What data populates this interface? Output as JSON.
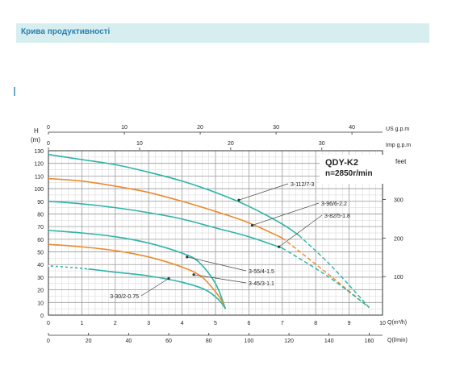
{
  "header": {
    "title": "Крива продуктивності"
  },
  "chart_data": {
    "type": "line",
    "title": "QDY-K2",
    "subtitle": "n=2850r/min",
    "y_axis": {
      "label": "H",
      "unit": "(m)",
      "ylim": [
        0,
        130
      ],
      "ticks": [
        0,
        10,
        20,
        30,
        40,
        50,
        60,
        70,
        80,
        90,
        100,
        110,
        120,
        130
      ]
    },
    "y_axis_right": {
      "label": "feet",
      "ticks": [
        100,
        200,
        300
      ]
    },
    "x_axis_primary": {
      "label": "Q(m³/h)",
      "xlim": [
        0,
        10
      ],
      "ticks": [
        0,
        1,
        2,
        3,
        4,
        5,
        6,
        7,
        8,
        9,
        10
      ]
    },
    "x_axis_lpm": {
      "label": "Q(l/min)",
      "ticks": [
        0,
        20,
        40,
        60,
        80,
        100,
        120,
        140,
        160
      ]
    },
    "x_axis_us_gpm": {
      "label": "US g.p.m",
      "ticks": [
        0,
        10,
        20,
        30,
        40
      ]
    },
    "x_axis_imp_gpm": {
      "label": "Imp g.p.m",
      "ticks": [
        0,
        10,
        20,
        30
      ]
    },
    "grid": true,
    "series": [
      {
        "name": "3-112/7-3",
        "color": "#2bb5a8",
        "x": [
          0,
          1,
          2,
          3,
          4,
          5,
          6,
          7,
          7.5
        ],
        "y": [
          127,
          123,
          119,
          113,
          106,
          97,
          86,
          72,
          63
        ],
        "dashed": {
          "x": [
            7.5,
            8.5,
            9.6
          ],
          "y": [
            63,
            38,
            6
          ]
        }
      },
      {
        "name": "3-96/6-2.2",
        "color": "#ee8a2c",
        "x": [
          0,
          1,
          2,
          3,
          4,
          5,
          6,
          7
        ],
        "y": [
          108,
          106,
          102,
          97,
          90,
          82,
          73,
          61
        ],
        "dashed": {
          "x": [
            7,
            8.3,
            9.6
          ],
          "y": [
            61,
            34,
            6
          ]
        }
      },
      {
        "name": "3-82/5-1.8",
        "color": "#2bb5a8",
        "x": [
          0,
          1,
          2,
          3,
          4,
          5,
          6,
          7
        ],
        "y": [
          90,
          88,
          85,
          81,
          76,
          69,
          62,
          53
        ],
        "dashed": {
          "x": [
            7,
            8.4,
            9.6
          ],
          "y": [
            53,
            30,
            6
          ]
        }
      },
      {
        "name": "3-55/4-1.5",
        "color": "#2bb5a8",
        "x": [
          0,
          1,
          2,
          3,
          4,
          4.5,
          5,
          5.3
        ],
        "y": [
          67,
          65,
          62,
          57,
          49,
          42,
          25,
          5
        ]
      },
      {
        "name": "3-45/3-1.1",
        "color": "#ee8a2c",
        "x": [
          0,
          1,
          2,
          3,
          4,
          4.6,
          5.1,
          5.3
        ],
        "y": [
          56,
          54,
          51,
          46,
          38,
          30,
          15,
          5
        ]
      },
      {
        "name": "3-30/2-0.75",
        "color": "#2bb5a8",
        "x": [
          0,
          1,
          2,
          3,
          4,
          4.7,
          5.1,
          5.3
        ],
        "y": [
          39,
          37,
          34,
          31,
          26,
          20,
          12,
          5
        ],
        "dashed_start": {
          "x": [
            0,
            1.2
          ],
          "y": [
            39,
            37
          ]
        }
      }
    ]
  }
}
